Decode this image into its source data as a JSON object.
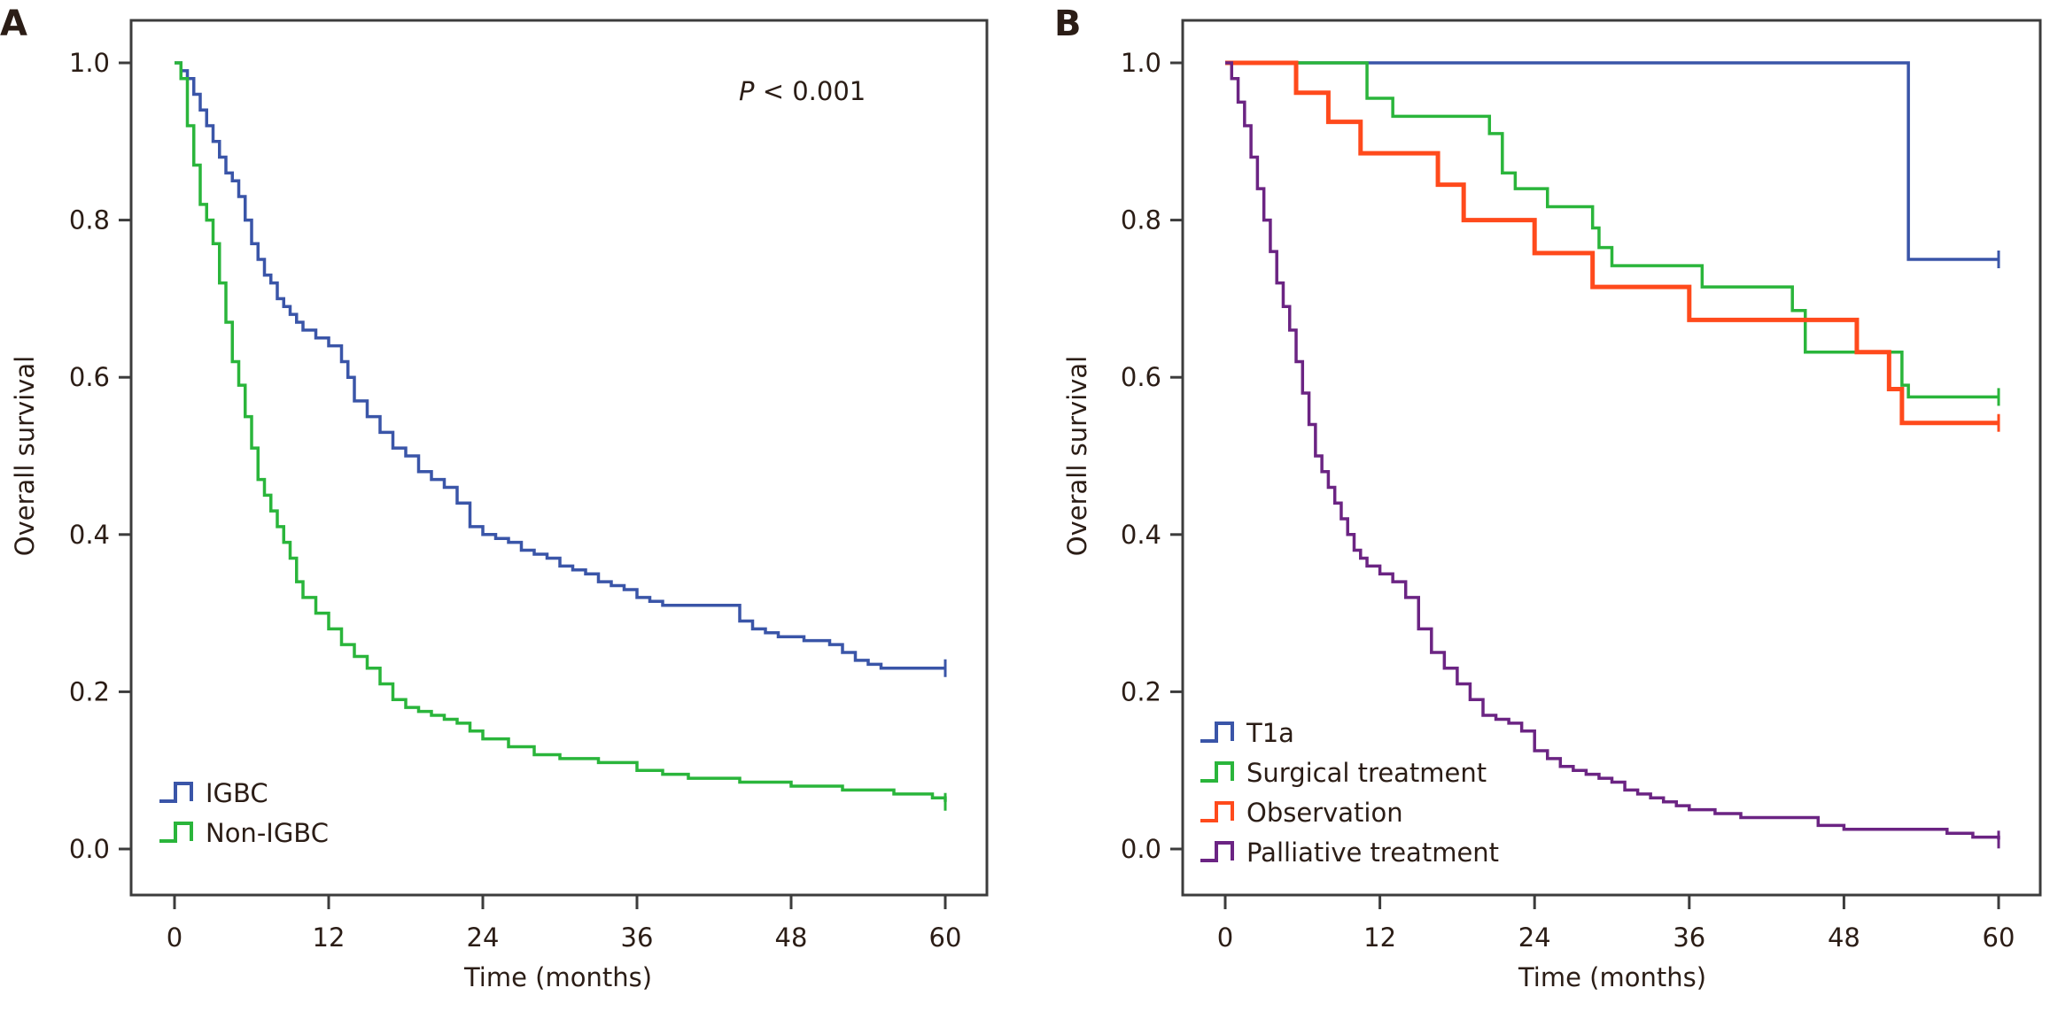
{
  "chart_data": [
    {
      "panel": "A",
      "type": "line",
      "subtype": "kaplan-meier",
      "title": "",
      "xlabel": "Time (months)",
      "ylabel": "Overall survival",
      "xlim": [
        0,
        60
      ],
      "ylim": [
        0,
        1
      ],
      "xticks": [
        "0",
        "12",
        "24",
        "36",
        "48",
        "60"
      ],
      "yticks": [
        "0.0",
        "0.2",
        "0.4",
        "0.6",
        "0.8",
        "1.0"
      ],
      "grid": false,
      "legend_position": "bottom-left",
      "annotation": {
        "italic": "P",
        "text": " < 0.001"
      },
      "series": [
        {
          "name": "IGBC",
          "color": "#3a55a8",
          "x": [
            0,
            0.5,
            1,
            1.5,
            2,
            2.5,
            3,
            3.5,
            4,
            4.5,
            5,
            5.5,
            6,
            6.5,
            7,
            7.5,
            8,
            8.5,
            9,
            9.5,
            10,
            11,
            12,
            13,
            13.5,
            14,
            15,
            16,
            17,
            18,
            19,
            20,
            21,
            22,
            23,
            24,
            25,
            26,
            27,
            28,
            29,
            30,
            31,
            32,
            33,
            34,
            35,
            36,
            37,
            38,
            39,
            40,
            41,
            42,
            43,
            44,
            45,
            46,
            47,
            48,
            49,
            50,
            51,
            52,
            53,
            54,
            55,
            56,
            57,
            58,
            59,
            60
          ],
          "y": [
            1.0,
            0.99,
            0.98,
            0.96,
            0.94,
            0.92,
            0.9,
            0.88,
            0.86,
            0.85,
            0.83,
            0.8,
            0.77,
            0.75,
            0.73,
            0.72,
            0.7,
            0.69,
            0.68,
            0.67,
            0.66,
            0.65,
            0.64,
            0.62,
            0.6,
            0.57,
            0.55,
            0.53,
            0.51,
            0.5,
            0.48,
            0.47,
            0.46,
            0.44,
            0.41,
            0.4,
            0.395,
            0.39,
            0.38,
            0.375,
            0.37,
            0.36,
            0.355,
            0.35,
            0.34,
            0.335,
            0.33,
            0.32,
            0.315,
            0.31,
            0.31,
            0.31,
            0.31,
            0.31,
            0.31,
            0.29,
            0.28,
            0.275,
            0.27,
            0.27,
            0.265,
            0.265,
            0.26,
            0.25,
            0.24,
            0.235,
            0.23,
            0.23,
            0.23,
            0.23,
            0.23,
            0.23
          ]
        },
        {
          "name": "Non-IGBC",
          "color": "#2ab53b",
          "x": [
            0,
            0.5,
            1,
            1.5,
            2,
            2.5,
            3,
            3.5,
            4,
            4.5,
            5,
            5.5,
            6,
            6.5,
            7,
            7.5,
            8,
            8.5,
            9,
            9.5,
            10,
            11,
            12,
            13,
            14,
            15,
            16,
            17,
            18,
            19,
            20,
            21,
            22,
            23,
            24,
            26,
            28,
            30,
            33,
            36,
            38,
            40,
            44,
            48,
            52,
            56,
            59,
            60
          ],
          "y": [
            1.0,
            0.98,
            0.92,
            0.87,
            0.82,
            0.8,
            0.77,
            0.72,
            0.67,
            0.62,
            0.59,
            0.55,
            0.51,
            0.47,
            0.45,
            0.43,
            0.41,
            0.39,
            0.37,
            0.34,
            0.32,
            0.3,
            0.28,
            0.26,
            0.245,
            0.23,
            0.21,
            0.19,
            0.18,
            0.175,
            0.17,
            0.165,
            0.16,
            0.15,
            0.14,
            0.13,
            0.12,
            0.115,
            0.11,
            0.1,
            0.095,
            0.09,
            0.085,
            0.08,
            0.075,
            0.07,
            0.065,
            0.06
          ]
        }
      ]
    },
    {
      "panel": "B",
      "type": "line",
      "subtype": "kaplan-meier",
      "title": "",
      "xlabel": "Time (months)",
      "ylabel": "Overall survival",
      "xlim": [
        0,
        60
      ],
      "ylim": [
        0,
        1
      ],
      "xticks": [
        "0",
        "12",
        "24",
        "36",
        "48",
        "60"
      ],
      "yticks": [
        "0.0",
        "0.2",
        "0.4",
        "0.6",
        "0.8",
        "1.0"
      ],
      "grid": false,
      "legend_position": "bottom-left",
      "series": [
        {
          "name": "T1a",
          "color": "#3a55a8",
          "x": [
            0,
            53,
            53,
            60
          ],
          "y": [
            1.0,
            1.0,
            0.75,
            0.75
          ]
        },
        {
          "name": "Surgical treatment",
          "color": "#2ab53b",
          "x": [
            0,
            11,
            11,
            13,
            13,
            20.5,
            20.5,
            21.5,
            21.5,
            22.5,
            22.5,
            25,
            25,
            28.5,
            28.5,
            29,
            29,
            30,
            30,
            37,
            37,
            44,
            44,
            45,
            45,
            52.5,
            52.5,
            53,
            53,
            60
          ],
          "y": [
            1.0,
            1.0,
            0.955,
            0.955,
            0.932,
            0.932,
            0.91,
            0.91,
            0.86,
            0.86,
            0.84,
            0.84,
            0.817,
            0.817,
            0.79,
            0.79,
            0.765,
            0.765,
            0.742,
            0.742,
            0.715,
            0.715,
            0.685,
            0.685,
            0.632,
            0.632,
            0.59,
            0.59,
            0.575,
            0.575
          ]
        },
        {
          "name": "Observation",
          "color": "#ff4a1c",
          "x": [
            0,
            5.5,
            5.5,
            8,
            8,
            10.5,
            10.5,
            16.5,
            16.5,
            18.5,
            18.5,
            24,
            24,
            28.5,
            28.5,
            36,
            36,
            49,
            49,
            51.5,
            51.5,
            52.5,
            52.5,
            60
          ],
          "y": [
            1.0,
            1.0,
            0.962,
            0.962,
            0.925,
            0.925,
            0.885,
            0.885,
            0.845,
            0.845,
            0.8,
            0.8,
            0.758,
            0.758,
            0.715,
            0.715,
            0.673,
            0.673,
            0.632,
            0.632,
            0.585,
            0.585,
            0.542,
            0.542
          ]
        },
        {
          "name": "Palliative treatment",
          "color": "#6b2483",
          "x": [
            0,
            0.5,
            1,
            1.5,
            2,
            2.5,
            3,
            3.5,
            4,
            4.5,
            5,
            5.5,
            6,
            6.5,
            7,
            7.5,
            8,
            8.5,
            9,
            9.5,
            10,
            10.5,
            11,
            12,
            13,
            14,
            15,
            16,
            17,
            18,
            19,
            20,
            21,
            22,
            23,
            24,
            25,
            26,
            27,
            28,
            29,
            30,
            31,
            32,
            33,
            34,
            35,
            36,
            38,
            40,
            42,
            44,
            46,
            48,
            50,
            52,
            54,
            56,
            58,
            60
          ],
          "y": [
            1.0,
            0.98,
            0.95,
            0.92,
            0.88,
            0.84,
            0.8,
            0.76,
            0.72,
            0.69,
            0.66,
            0.62,
            0.58,
            0.54,
            0.5,
            0.48,
            0.46,
            0.44,
            0.42,
            0.4,
            0.38,
            0.37,
            0.36,
            0.35,
            0.34,
            0.32,
            0.28,
            0.25,
            0.23,
            0.21,
            0.19,
            0.17,
            0.165,
            0.16,
            0.15,
            0.125,
            0.115,
            0.105,
            0.1,
            0.095,
            0.09,
            0.085,
            0.075,
            0.07,
            0.065,
            0.06,
            0.055,
            0.05,
            0.045,
            0.04,
            0.04,
            0.04,
            0.03,
            0.025,
            0.025,
            0.025,
            0.025,
            0.02,
            0.015,
            0.012
          ]
        }
      ]
    }
  ]
}
